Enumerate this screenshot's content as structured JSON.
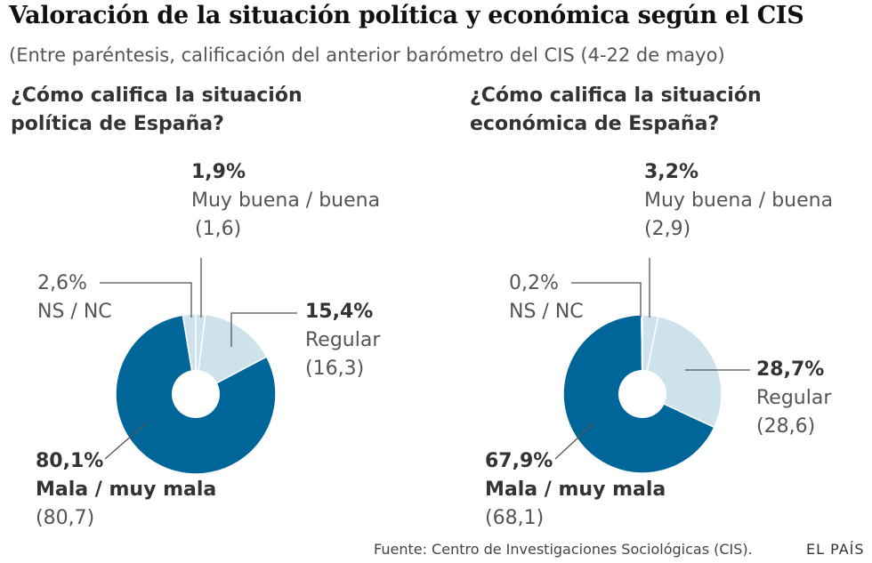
{
  "header": {
    "title": "Valoración de la situación política y económica según el CIS",
    "subtitle": "(Entre paréntesis, calificación del anterior barómetro del CIS (4-22 de mayo)"
  },
  "footer": {
    "source": "Fuente: Centro de Investigaciones Sociológicas (CIS).",
    "brand": "EL PAÍS"
  },
  "colors": {
    "mala": "#00669a",
    "regular": "#cde2ea",
    "buena": "#cde2ea",
    "nsnc": "#cde2ea"
  },
  "chart_data": [
    {
      "type": "pie",
      "title": "¿Cómo califica la situación política de España?",
      "slices": [
        {
          "label": "Muy buena / buena",
          "value": 1.9,
          "value_text": "1,9%",
          "previous": "(1,6)"
        },
        {
          "label": "Regular",
          "value": 15.4,
          "value_text": "15,4%",
          "previous": "(16,3)"
        },
        {
          "label": "Mala / muy mala",
          "value": 80.1,
          "value_text": "80,1%",
          "previous": "(80,7)"
        },
        {
          "label": "NS / NC",
          "value": 2.6,
          "value_text": "2,6%",
          "previous": ""
        }
      ]
    },
    {
      "type": "pie",
      "title": "¿Cómo califica la situación económica de España?",
      "slices": [
        {
          "label": "Muy buena / buena",
          "value": 3.2,
          "value_text": "3,2%",
          "previous": "(2,9)"
        },
        {
          "label": "Regular",
          "value": 28.7,
          "value_text": "28,7%",
          "previous": "(28,6)"
        },
        {
          "label": "Mala / muy mala",
          "value": 67.9,
          "value_text": "67,9%",
          "previous": "(68,1)"
        },
        {
          "label": "NS / NC",
          "value": 0.2,
          "value_text": "0,2%",
          "previous": ""
        }
      ]
    }
  ]
}
